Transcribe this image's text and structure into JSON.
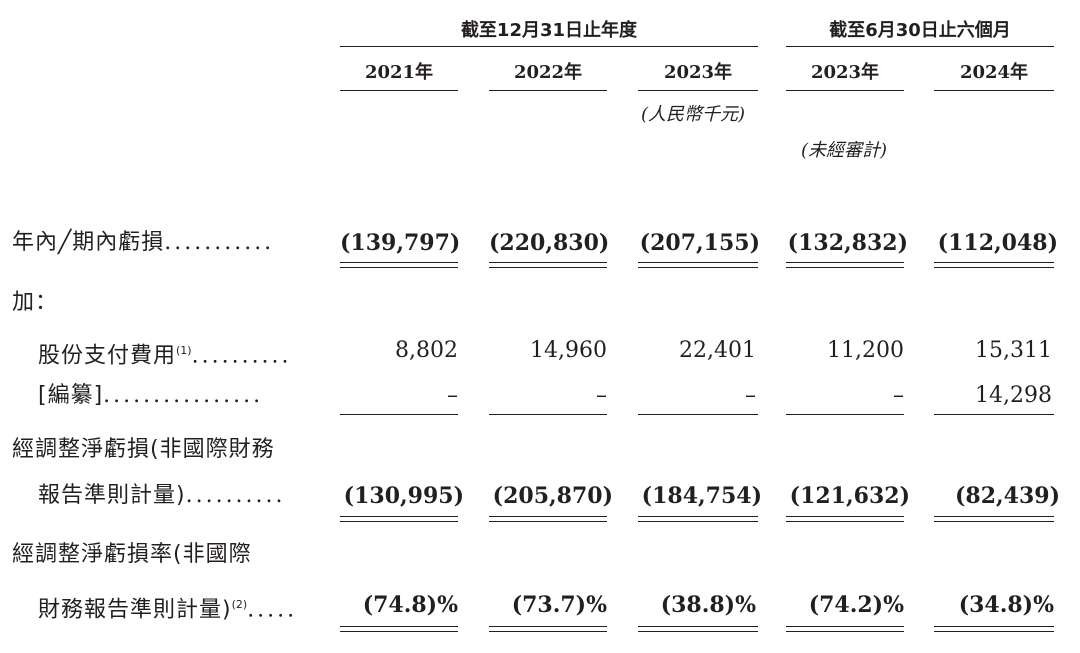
{
  "header": {
    "group_fy": "截至12月31日止年度",
    "group_half": "截至6月30日止六個月",
    "years": [
      "2021年",
      "2022年",
      "2023年",
      "2023年",
      "2024年"
    ],
    "currency_note": "(人民幣千元)",
    "unaudited_note": "(未經審計)"
  },
  "rows": {
    "loss": {
      "label": "年內╱期內虧損",
      "dots": "...........",
      "values": [
        "(139,797)",
        "(220,830)",
        "(207,155)",
        "(132,832)",
        "(112,048)"
      ]
    },
    "add": {
      "label": "加："
    },
    "share_comp": {
      "label": "股份支付費用",
      "note": "(1)",
      "dots": "..........",
      "values": [
        "8,802",
        "14,960",
        "22,401",
        "11,200",
        "15,311"
      ]
    },
    "redacted": {
      "label": "[編纂]",
      "dots": "................",
      "values": [
        "–",
        "–",
        "–",
        "–",
        "14,298"
      ]
    },
    "adj_loss": {
      "label_line1": "經調整淨虧損(非國際財務",
      "label_line2": "報告準則計量)",
      "dots": "..........",
      "values": [
        "(130,995)",
        "(205,870)",
        "(184,754)",
        "(121,632)",
        "(82,439)"
      ]
    },
    "adj_rate": {
      "label_line1": "經調整淨虧損率(非國際",
      "label_line2": "財務報告準則計量)",
      "note": "(2)",
      "dots": ".....",
      "values": [
        "(74.8)%",
        "(73.7)%",
        "(38.8)%",
        "(74.2)%",
        "(34.8)%"
      ]
    }
  }
}
